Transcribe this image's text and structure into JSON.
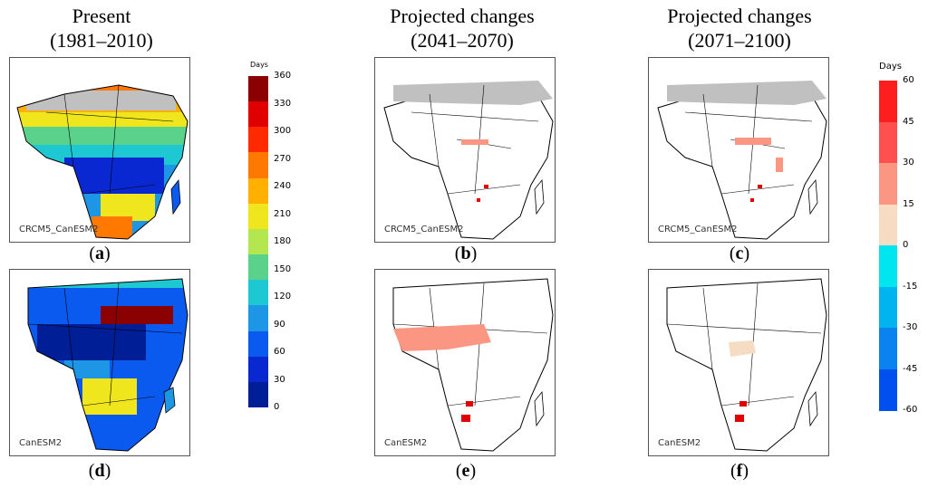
{
  "columns": [
    {
      "line1": "Present",
      "line2": "(1981–2010)"
    },
    {
      "line1": "Projected changes",
      "line2": "(2041–2070)"
    },
    {
      "line1": "Projected changes",
      "line2": "(2071–2100)"
    }
  ],
  "panels": [
    {
      "model": "CRCM5_CanESM2",
      "paren_open": "(",
      "letter": "a",
      "paren_close": ")"
    },
    {
      "model": "CRCM5_CanESM2",
      "paren_open": "(",
      "letter": "b",
      "paren_close": ")"
    },
    {
      "model": "CRCM5_CanESM2",
      "paren_open": "(",
      "letter": "c",
      "paren_close": ")"
    },
    {
      "model": "CanESM2",
      "paren_open": "(",
      "letter": "d",
      "paren_close": ")"
    },
    {
      "model": "CanESM2",
      "paren_open": "(",
      "letter": "e",
      "paren_close": ")"
    },
    {
      "model": "CanESM2",
      "paren_open": "(",
      "letter": "f",
      "paren_close": ")"
    }
  ],
  "colorbar_present": {
    "unit": "Days",
    "ticks": [
      "360",
      "330",
      "300",
      "270",
      "240",
      "210",
      "180",
      "150",
      "120",
      "90",
      "60",
      "30",
      "0"
    ],
    "colors": [
      "#8b0000",
      "#e00000",
      "#ff2a00",
      "#ff7800",
      "#ffb000",
      "#f0e61e",
      "#b4e650",
      "#5ad28c",
      "#1ec8d2",
      "#1e96e6",
      "#0a5af0",
      "#0a28d2",
      "#001e96"
    ]
  },
  "colorbar_change": {
    "unit": "Days",
    "ticks": [
      "60",
      "45",
      "30",
      "15",
      "0",
      "-15",
      "-30",
      "-45",
      "-60"
    ],
    "colors": [
      "#ff1e1e",
      "#ff5050",
      "#fa9682",
      "#f5dcc3",
      "#00e6f0",
      "#00b4f0",
      "#0a82f0",
      "#0050f0"
    ]
  },
  "map_colors": {
    "desert": "#c0c0c0",
    "land_edge": "#000000",
    "ocean": "#ffffff"
  }
}
